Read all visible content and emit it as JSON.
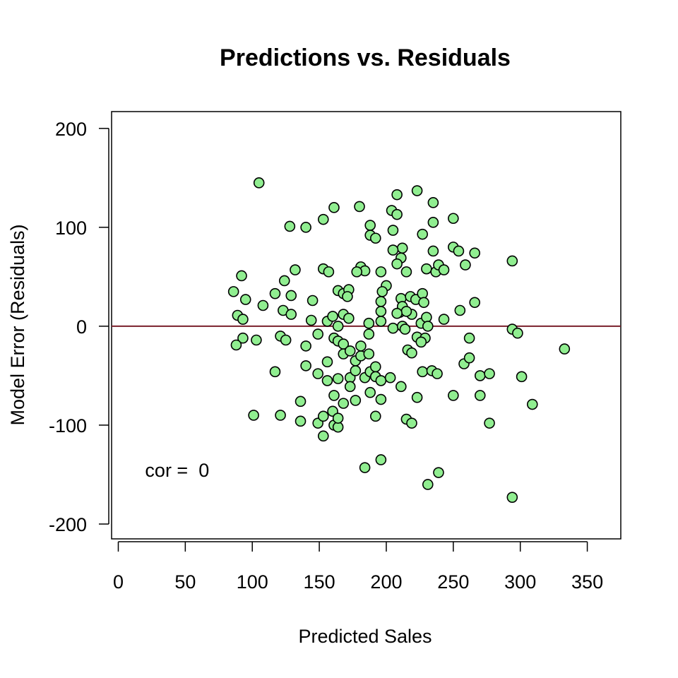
{
  "chart_data": {
    "type": "scatter",
    "title": "Predictions vs. Residuals",
    "xlabel": "Predicted Sales",
    "ylabel": "Model Error (Residuals)",
    "xlim": [
      -5,
      375
    ],
    "ylim": [
      -215,
      217
    ],
    "x_ticks": [
      0,
      50,
      100,
      150,
      200,
      250,
      300,
      350
    ],
    "x_tick_labels": [
      "0",
      "50",
      "100",
      "150",
      "200",
      "250",
      "300",
      "350"
    ],
    "y_ticks": [
      -200,
      -100,
      0,
      100,
      200
    ],
    "y_tick_labels": [
      "-200",
      "-100",
      "0",
      "100",
      "200"
    ],
    "grid": false,
    "reference_line": {
      "y": 0,
      "color": "#7a1f2b"
    },
    "annotation": {
      "text": "cor =  0",
      "x": 20,
      "y": -152
    },
    "marker": {
      "fill": "#90ee90",
      "stroke": "#000000"
    },
    "points": [
      [
        105,
        145
      ],
      [
        223,
        137
      ],
      [
        208,
        133
      ],
      [
        235,
        125
      ],
      [
        161,
        120
      ],
      [
        180,
        121
      ],
      [
        204,
        117
      ],
      [
        208,
        113
      ],
      [
        153,
        108
      ],
      [
        250,
        109
      ],
      [
        235,
        105
      ],
      [
        128,
        101
      ],
      [
        140,
        100
      ],
      [
        188,
        102
      ],
      [
        205,
        97
      ],
      [
        188,
        92
      ],
      [
        192,
        89
      ],
      [
        227,
        93
      ],
      [
        212,
        79
      ],
      [
        250,
        80
      ],
      [
        254,
        76
      ],
      [
        205,
        77
      ],
      [
        235,
        76
      ],
      [
        266,
        74
      ],
      [
        294,
        66
      ],
      [
        211,
        69
      ],
      [
        208,
        63
      ],
      [
        259,
        62
      ],
      [
        153,
        58
      ],
      [
        132,
        57
      ],
      [
        181,
        60
      ],
      [
        184,
        56
      ],
      [
        215,
        55
      ],
      [
        157,
        55
      ],
      [
        178,
        55
      ],
      [
        196,
        55
      ],
      [
        230,
        58
      ],
      [
        237,
        55
      ],
      [
        239,
        62
      ],
      [
        243,
        57
      ],
      [
        92,
        51
      ],
      [
        124,
        46
      ],
      [
        200,
        41
      ],
      [
        86,
        35
      ],
      [
        95,
        27
      ],
      [
        117,
        33
      ],
      [
        129,
        31
      ],
      [
        164,
        36
      ],
      [
        168,
        33
      ],
      [
        172,
        37
      ],
      [
        197,
        35
      ],
      [
        145,
        26
      ],
      [
        211,
        28
      ],
      [
        218,
        30
      ],
      [
        108,
        21
      ],
      [
        123,
        16
      ],
      [
        171,
        30
      ],
      [
        196,
        25
      ],
      [
        222,
        27
      ],
      [
        227,
        33
      ],
      [
        228,
        24
      ],
      [
        219,
        12
      ],
      [
        210,
        14
      ],
      [
        212,
        20
      ],
      [
        215,
        15
      ],
      [
        208,
        13
      ],
      [
        255,
        16
      ],
      [
        266,
        24
      ],
      [
        89,
        11
      ],
      [
        93,
        7
      ],
      [
        129,
        12
      ],
      [
        144,
        6
      ],
      [
        156,
        5
      ],
      [
        160,
        10
      ],
      [
        164,
        0
      ],
      [
        168,
        12
      ],
      [
        172,
        8
      ],
      [
        187,
        3
      ],
      [
        196,
        15
      ],
      [
        196,
        5
      ],
      [
        205,
        -2
      ],
      [
        212,
        0
      ],
      [
        214,
        -3
      ],
      [
        223,
        -11
      ],
      [
        226,
        3
      ],
      [
        230,
        9
      ],
      [
        231,
        0
      ],
      [
        229,
        -12
      ],
      [
        243,
        7
      ],
      [
        262,
        -12
      ],
      [
        93,
        -12
      ],
      [
        103,
        -14
      ],
      [
        121,
        -10
      ],
      [
        125,
        -14
      ],
      [
        140,
        -20
      ],
      [
        149,
        -8
      ],
      [
        161,
        -12
      ],
      [
        164,
        -15
      ],
      [
        168,
        -18
      ],
      [
        168,
        -28
      ],
      [
        173,
        -25
      ],
      [
        177,
        -35
      ],
      [
        181,
        -30
      ],
      [
        181,
        -20
      ],
      [
        187,
        -8
      ],
      [
        187,
        -28
      ],
      [
        216,
        -24
      ],
      [
        219,
        -27
      ],
      [
        226,
        -16
      ],
      [
        258,
        -38
      ],
      [
        262,
        -32
      ],
      [
        294,
        -3
      ],
      [
        298,
        -7
      ],
      [
        333,
        -23
      ],
      [
        88,
        -19
      ],
      [
        117,
        -46
      ],
      [
        140,
        -40
      ],
      [
        149,
        -48
      ],
      [
        156,
        -36
      ],
      [
        156,
        -55
      ],
      [
        164,
        -53
      ],
      [
        173,
        -52
      ],
      [
        173,
        -61
      ],
      [
        177,
        -45
      ],
      [
        184,
        -52
      ],
      [
        188,
        -46
      ],
      [
        192,
        -41
      ],
      [
        192,
        -51
      ],
      [
        196,
        -55
      ],
      [
        203,
        -52
      ],
      [
        211,
        -61
      ],
      [
        227,
        -46
      ],
      [
        234,
        -45
      ],
      [
        238,
        -48
      ],
      [
        270,
        -50
      ],
      [
        277,
        -48
      ],
      [
        301,
        -51
      ],
      [
        136,
        -76
      ],
      [
        161,
        -70
      ],
      [
        168,
        -78
      ],
      [
        177,
        -75
      ],
      [
        188,
        -67
      ],
      [
        196,
        -74
      ],
      [
        223,
        -72
      ],
      [
        250,
        -70
      ],
      [
        270,
        -70
      ],
      [
        309,
        -79
      ],
      [
        101,
        -90
      ],
      [
        121,
        -90
      ],
      [
        136,
        -96
      ],
      [
        149,
        -98
      ],
      [
        153,
        -91
      ],
      [
        160,
        -86
      ],
      [
        161,
        -100
      ],
      [
        164,
        -102
      ],
      [
        164,
        -93
      ],
      [
        192,
        -91
      ],
      [
        215,
        -94
      ],
      [
        219,
        -98
      ],
      [
        277,
        -98
      ],
      [
        153,
        -111
      ],
      [
        184,
        -143
      ],
      [
        196,
        -135
      ],
      [
        231,
        -160
      ],
      [
        239,
        -148
      ],
      [
        294,
        -173
      ]
    ]
  }
}
